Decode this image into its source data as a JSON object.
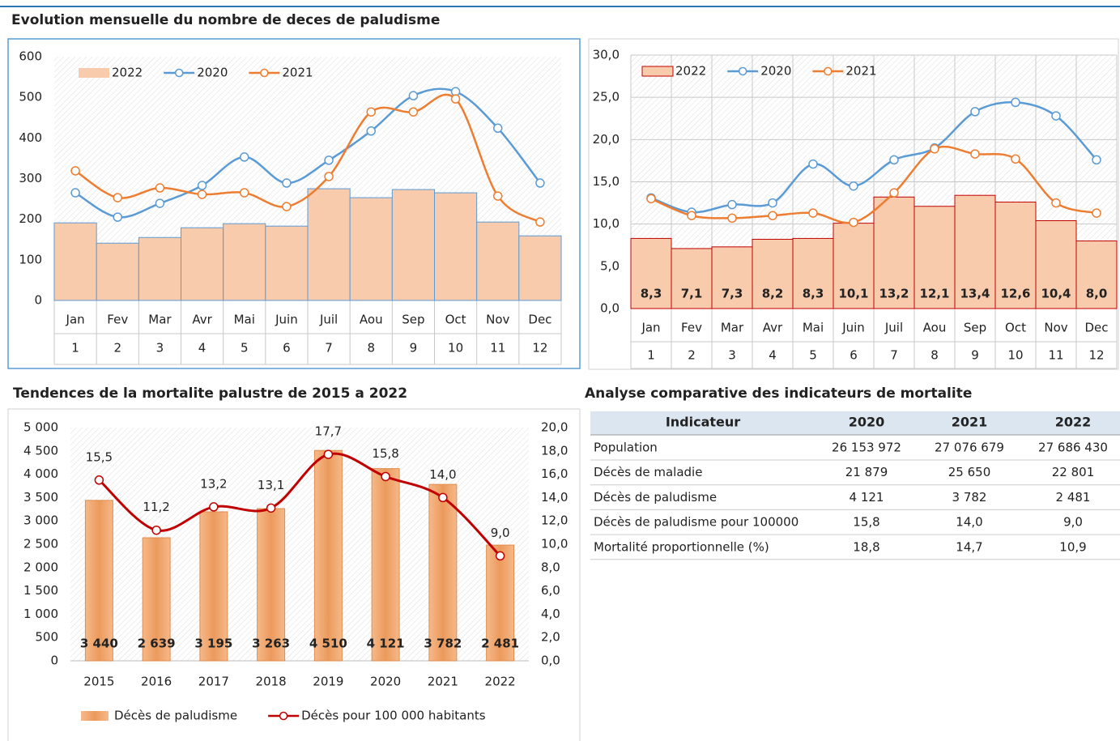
{
  "chart_data": [
    {
      "type": "bar_line",
      "title": "Evolution mensuelle du nombre de deces de paludisme",
      "categories": [
        "Jan",
        "Fev",
        "Mar",
        "Avr",
        "Mai",
        "Juin",
        "Juil",
        "Aou",
        "Sep",
        "Oct",
        "Nov",
        "Dec"
      ],
      "subcategories": [
        "1",
        "2",
        "3",
        "4",
        "5",
        "6",
        "7",
        "8",
        "9",
        "10",
        "11",
        "12"
      ],
      "ylim": [
        0,
        600
      ],
      "yticks": [
        0,
        100,
        200,
        300,
        400,
        500,
        600
      ],
      "grid": false,
      "legend": "top-left",
      "series": [
        {
          "name": "2022",
          "type": "bar",
          "color": "#f8cbad",
          "edge": "#5b9bd5",
          "values": [
            191,
            141,
            155,
            179,
            189,
            183,
            275,
            253,
            273,
            265,
            193,
            159
          ]
        },
        {
          "name": "2020",
          "type": "line",
          "color": "#5b9bd5",
          "values": [
            265,
            205,
            239,
            283,
            353,
            289,
            345,
            417,
            504,
            514,
            424,
            289
          ]
        },
        {
          "name": "2021",
          "type": "line",
          "color": "#ed7d31",
          "values": [
            319,
            253,
            277,
            261,
            265,
            231,
            305,
            464,
            464,
            496,
            257,
            193
          ]
        }
      ]
    },
    {
      "type": "bar_line",
      "categories": [
        "Jan",
        "Fev",
        "Mar",
        "Avr",
        "Mai",
        "Juin",
        "Juil",
        "Aou",
        "Sep",
        "Oct",
        "Nov",
        "Dec"
      ],
      "subcategories": [
        "1",
        "2",
        "3",
        "4",
        "5",
        "6",
        "7",
        "8",
        "9",
        "10",
        "11",
        "12"
      ],
      "ylim": [
        0,
        30
      ],
      "yticks": [
        {
          "value": 0,
          "label": "0,0"
        },
        {
          "value": 5,
          "label": "5,0"
        },
        {
          "value": 10,
          "label": "10,0"
        },
        {
          "value": 15,
          "label": "15,0"
        },
        {
          "value": 20,
          "label": "20,0"
        },
        {
          "value": 25,
          "label": "25,0"
        },
        {
          "value": 30,
          "label": "30,0"
        }
      ],
      "grid": true,
      "legend": "top-left",
      "series": [
        {
          "name": "2022",
          "type": "bar",
          "color": "#f8cbad",
          "edge": "#c00000",
          "values": [
            8.3,
            7.1,
            7.3,
            8.2,
            8.3,
            10.1,
            13.2,
            12.1,
            13.4,
            12.6,
            10.4,
            8.0
          ],
          "value_labels": [
            "8,3",
            "7,1",
            "7,3",
            "8,2",
            "8,3",
            "10,1",
            "13,2",
            "12,1",
            "13,4",
            "12,6",
            "10,4",
            "8,0"
          ]
        },
        {
          "name": "2020",
          "type": "line",
          "color": "#5b9bd5",
          "values": [
            13.1,
            11.4,
            12.3,
            12.5,
            17.1,
            14.5,
            17.6,
            19.0,
            23.3,
            24.4,
            22.8,
            17.6
          ]
        },
        {
          "name": "2021",
          "type": "line",
          "color": "#ed7d31",
          "values": [
            13.0,
            11.0,
            10.7,
            11.0,
            11.3,
            10.2,
            13.7,
            18.9,
            18.3,
            17.7,
            12.5,
            11.3
          ]
        }
      ]
    },
    {
      "type": "bar_line",
      "title": "Tendences de la mortalite palustre de 2015 a 2022",
      "categories": [
        "2015",
        "2016",
        "2017",
        "2018",
        "2019",
        "2020",
        "2021",
        "2022"
      ],
      "ylim": [
        0,
        5000
      ],
      "yticks": [
        0,
        {
          "value": 500,
          "label": "500"
        },
        {
          "value": 1000,
          "label": "1 000"
        },
        {
          "value": 1500,
          "label": "1 500"
        },
        {
          "value": 2000,
          "label": "2 000"
        },
        {
          "value": 2500,
          "label": "2 500"
        },
        {
          "value": 3000,
          "label": "3 000"
        },
        {
          "value": 3500,
          "label": "3 500"
        },
        {
          "value": 4000,
          "label": "4 000"
        },
        {
          "value": 4500,
          "label": "4 500"
        },
        {
          "value": 5000,
          "label": "5 000"
        }
      ],
      "y2lim": [
        0,
        20
      ],
      "y2ticks": [
        {
          "value": 0,
          "label": "0,0"
        },
        {
          "value": 2,
          "label": "2,0"
        },
        {
          "value": 4,
          "label": "4,0"
        },
        {
          "value": 6,
          "label": "6,0"
        },
        {
          "value": 8,
          "label": "8,0"
        },
        {
          "value": 10,
          "label": "10,0"
        },
        {
          "value": 12,
          "label": "12,0"
        },
        {
          "value": 14,
          "label": "14,0"
        },
        {
          "value": 16,
          "label": "16,0"
        },
        {
          "value": 18,
          "label": "18,0"
        },
        {
          "value": 20,
          "label": "20,0"
        }
      ],
      "grid": false,
      "legend": "bottom",
      "series": [
        {
          "name": "Décès de paludisme",
          "type": "bar",
          "color": "#f0a770",
          "edge": "#e08c4c",
          "values": [
            3440,
            2639,
            3195,
            3263,
            4510,
            4121,
            3782,
            2481
          ],
          "value_labels": [
            "3 440",
            "2 639",
            "3 195",
            "3 263",
            "4 510",
            "4 121",
            "3 782",
            "2 481"
          ]
        },
        {
          "name": "Décès pour 100 000 habitants",
          "type": "line",
          "axis": "y2",
          "color": "#c00000",
          "values": [
            15.5,
            11.2,
            13.2,
            13.1,
            17.7,
            15.8,
            14.0,
            9.0
          ],
          "value_labels": [
            "15,5",
            "11,2",
            "13,2",
            "13,1",
            "17,7",
            "15,8",
            "14,0",
            "9,0"
          ]
        }
      ]
    }
  ],
  "table": {
    "title": "Analyse comparative des indicateurs de mortalite",
    "header": [
      "Indicateur",
      "2020",
      "2021",
      "2022"
    ],
    "rows": [
      [
        "Population",
        "26 153 972",
        "27 076 679",
        "27 686 430"
      ],
      [
        "Décès de maladie",
        "21 879",
        "25 650",
        "22 801"
      ],
      [
        "Décès de paludisme",
        "4 121",
        "3 782",
        "2 481"
      ],
      [
        "Décès de paludisme pour 100000",
        "15,8",
        "14,0",
        "9,0"
      ],
      [
        "Mortalité proportionnelle (%)",
        "18,8",
        "14,7",
        "10,9"
      ]
    ]
  }
}
